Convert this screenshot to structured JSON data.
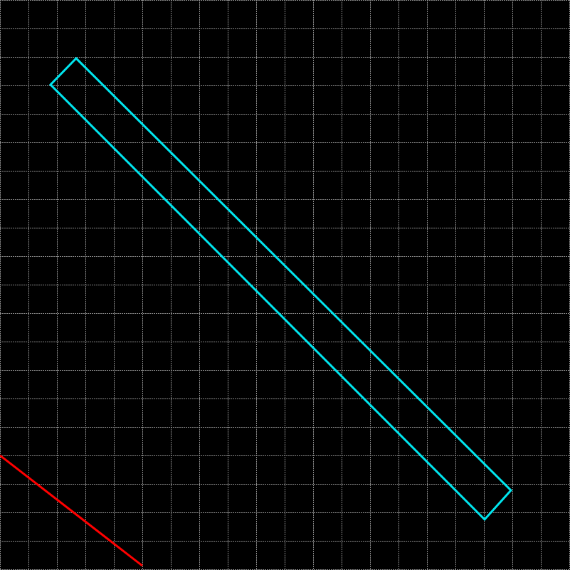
{
  "canvas": {
    "background_color": "#000000",
    "grid": {
      "visible": true,
      "line_color": "#8a8a8a",
      "dashed": true
    }
  },
  "shapes": {
    "cyan_rectangle": {
      "kind": "rotated-rectangle-outline",
      "stroke_color": "#00e5ee"
    },
    "red_segment": {
      "kind": "line-segment",
      "stroke_color": "#ff0000"
    }
  }
}
